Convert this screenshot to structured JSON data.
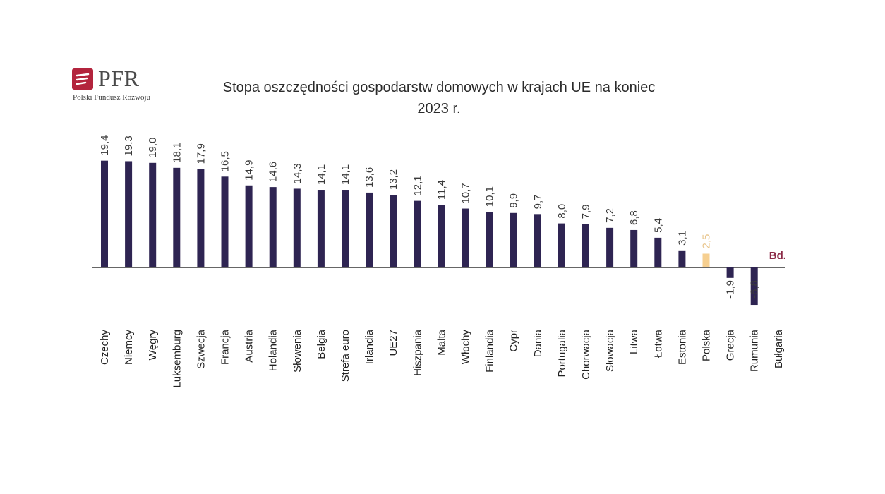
{
  "logo": {
    "name": "PFR",
    "subtitle": "Polski Fundusz Rozwoju",
    "icon": "pfr-logo-icon",
    "color": "#b3243d"
  },
  "chart_data": {
    "type": "bar",
    "title_line1": "Stopa oszczędności gospodarstw domowych w krajach UE na koniec",
    "title_line2": "2023 r.",
    "categories": [
      "Czechy",
      "Niemcy",
      "Węgry",
      "Luksemburg",
      "Szwecja",
      "Francja",
      "Austria",
      "Holandia",
      "Słowenia",
      "Belgia",
      "Strefa euro",
      "Irlandia",
      "UE27",
      "Hiszpania",
      "Malta",
      "Włochy",
      "Finlandia",
      "Cypr",
      "Dania",
      "Portugalia",
      "Chorwacja",
      "Słowacja",
      "Litwa",
      "Łotwa",
      "Estonia",
      "Polska",
      "Grecja",
      "Rumunia",
      "Bułgaria"
    ],
    "values": [
      19.4,
      19.3,
      19.0,
      18.1,
      17.9,
      16.5,
      14.9,
      14.6,
      14.3,
      14.1,
      14.1,
      13.6,
      13.2,
      12.1,
      11.4,
      10.7,
      10.1,
      9.9,
      9.7,
      8.0,
      7.9,
      7.2,
      6.8,
      5.4,
      3.1,
      2.5,
      -1.9,
      -6.8,
      null
    ],
    "value_labels": [
      "19,4",
      "19,3",
      "19,0",
      "18,1",
      "17,9",
      "16,5",
      "14,9",
      "14,6",
      "14,3",
      "14,1",
      "14,1",
      "13,6",
      "13,2",
      "12,1",
      "11,4",
      "10,7",
      "10,1",
      "9,9",
      "9,7",
      "8,0",
      "7,9",
      "7,2",
      "6,8",
      "5,4",
      "3,1",
      "2,5",
      "-1,9",
      "-6,8",
      "Bd."
    ],
    "highlight_category": "Polska",
    "colors": {
      "bar": "#2e2452",
      "highlight": "#f6cf90",
      "highlight_label": "#e8c48a",
      "missing_label": "#8b2946"
    },
    "ylim": [
      -7,
      20
    ],
    "legend": false,
    "grid": false
  }
}
